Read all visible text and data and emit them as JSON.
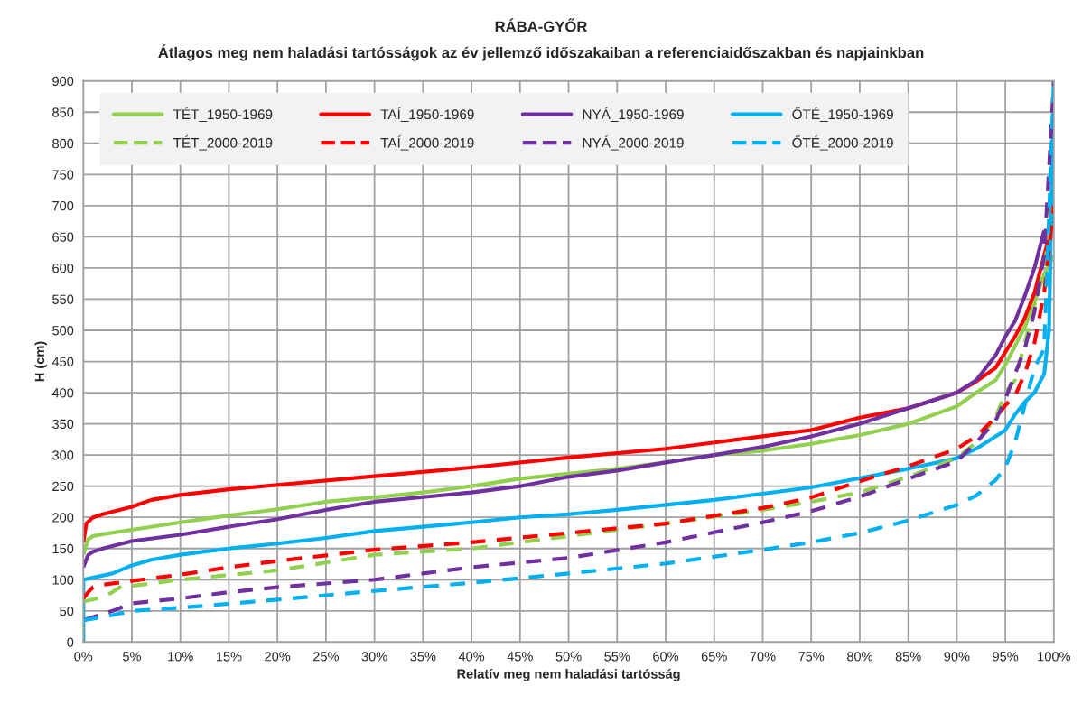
{
  "chart_data": {
    "type": "line",
    "title": "RÁBA-GYŐR",
    "subtitle": "Átlagos meg nem haladási tartósságok az év jellemző időszakaiban a referenciaidőszakban és napjainkban",
    "xlabel": "Relatív meg nem haladási tartósság",
    "ylabel": "H (cm)",
    "xlim": [
      0,
      100
    ],
    "ylim": [
      0,
      900
    ],
    "xticks": [
      {
        "value": 0,
        "label": "0%"
      },
      {
        "value": 5,
        "label": "5%"
      },
      {
        "value": 10,
        "label": "10%"
      },
      {
        "value": 15,
        "label": "15%"
      },
      {
        "value": 20,
        "label": "20%"
      },
      {
        "value": 25,
        "label": "25%"
      },
      {
        "value": 30,
        "label": "30%"
      },
      {
        "value": 35,
        "label": "35%"
      },
      {
        "value": 40,
        "label": "40%"
      },
      {
        "value": 45,
        "label": "45%"
      },
      {
        "value": 50,
        "label": "50%"
      },
      {
        "value": 55,
        "label": "55%"
      },
      {
        "value": 60,
        "label": "60%"
      },
      {
        "value": 65,
        "label": "65%"
      },
      {
        "value": 70,
        "label": "70%"
      },
      {
        "value": 75,
        "label": "75%"
      },
      {
        "value": 80,
        "label": "80%"
      },
      {
        "value": 85,
        "label": "85%"
      },
      {
        "value": 90,
        "label": "90%"
      },
      {
        "value": 95,
        "label": "95%"
      },
      {
        "value": 100,
        "label": "100%"
      }
    ],
    "yticks": [
      0,
      50,
      100,
      150,
      200,
      250,
      300,
      350,
      400,
      450,
      500,
      550,
      600,
      650,
      700,
      750,
      800,
      850,
      900
    ],
    "grid": true,
    "legend": "top left",
    "marker": "none",
    "series": [
      {
        "name": "TÉT_1950-1969",
        "color": "#92d050",
        "line_style": "solid",
        "x": [
          0,
          0.5,
          1,
          2,
          5,
          10,
          15,
          20,
          25,
          30,
          35,
          40,
          45,
          50,
          55,
          60,
          65,
          70,
          75,
          80,
          85,
          90,
          92,
          94,
          95,
          96,
          97,
          98,
          99,
          100
        ],
        "values": [
          140,
          165,
          170,
          173,
          180,
          192,
          203,
          213,
          225,
          232,
          240,
          250,
          262,
          270,
          278,
          288,
          300,
          307,
          318,
          332,
          350,
          378,
          400,
          420,
          445,
          475,
          505,
          545,
          590,
          620
        ]
      },
      {
        "name": "TAÍ_1950-1969",
        "color": "#ff0000",
        "line_style": "solid",
        "x": [
          0,
          0.3,
          1,
          2,
          5,
          7,
          10,
          15,
          20,
          30,
          40,
          50,
          60,
          70,
          75,
          80,
          85,
          90,
          92,
          94,
          95,
          96,
          97,
          98,
          99,
          100
        ],
        "values": [
          160,
          190,
          200,
          205,
          217,
          228,
          236,
          245,
          252,
          266,
          280,
          296,
          310,
          330,
          340,
          360,
          375,
          400,
          418,
          440,
          465,
          490,
          520,
          560,
          620,
          680
        ]
      },
      {
        "name": "NYÁ_1950-1969",
        "color": "#7030a0",
        "line_style": "solid",
        "x": [
          0,
          0.5,
          1,
          2,
          5,
          10,
          15,
          20,
          25,
          30,
          40,
          45,
          50,
          55,
          60,
          65,
          70,
          75,
          80,
          85,
          90,
          92,
          93,
          94,
          95,
          96,
          97,
          98,
          99
        ],
        "values": [
          120,
          140,
          145,
          150,
          162,
          172,
          185,
          197,
          212,
          225,
          240,
          250,
          265,
          275,
          288,
          300,
          313,
          330,
          350,
          375,
          400,
          420,
          440,
          460,
          490,
          515,
          555,
          600,
          660
        ]
      },
      {
        "name": "ŐTÉ_1950-1969",
        "color": "#00b0f0",
        "line_style": "solid",
        "x": [
          0,
          0,
          3,
          5,
          7,
          10,
          15,
          20,
          25,
          30,
          35,
          40,
          45,
          50,
          55,
          60,
          65,
          70,
          75,
          80,
          85,
          90,
          92,
          94,
          95,
          96,
          97,
          98,
          99,
          99.5,
          100
        ],
        "values": [
          0,
          100,
          110,
          123,
          132,
          140,
          150,
          158,
          167,
          178,
          185,
          192,
          200,
          205,
          212,
          220,
          228,
          238,
          248,
          263,
          278,
          295,
          310,
          330,
          340,
          365,
          385,
          400,
          430,
          500,
          900
        ]
      },
      {
        "name": "TÉT_2000-2019",
        "color": "#92d050",
        "line_style": "dashed",
        "x": [
          0,
          2,
          3,
          4,
          5,
          10,
          20,
          30,
          40,
          50,
          60,
          70,
          75,
          80,
          85,
          90,
          92,
          94,
          95,
          96,
          97,
          98,
          99,
          100
        ],
        "values": [
          65,
          72,
          80,
          90,
          90,
          100,
          115,
          140,
          150,
          170,
          190,
          212,
          225,
          240,
          265,
          295,
          320,
          360,
          400,
          420,
          480,
          540,
          600,
          700
        ]
      },
      {
        "name": "TAÍ_2000-2019",
        "color": "#ff0000",
        "line_style": "dashed",
        "x": [
          0,
          0.5,
          1,
          2,
          5,
          10,
          15,
          20,
          30,
          40,
          50,
          60,
          70,
          75,
          80,
          85,
          90,
          92,
          94,
          95,
          96,
          97,
          98,
          99,
          100
        ],
        "values": [
          70,
          80,
          88,
          92,
          98,
          108,
          120,
          130,
          148,
          160,
          175,
          190,
          215,
          232,
          258,
          282,
          310,
          330,
          360,
          380,
          395,
          430,
          480,
          560,
          700
        ]
      },
      {
        "name": "NYÁ_2000-2019",
        "color": "#7030a0",
        "line_style": "dashed",
        "x": [
          0,
          1,
          3,
          5,
          10,
          15,
          20,
          30,
          40,
          50,
          60,
          70,
          75,
          80,
          85,
          90,
          92,
          94,
          95,
          96,
          97,
          98,
          99,
          100
        ],
        "values": [
          35,
          40,
          50,
          62,
          70,
          80,
          88,
          100,
          120,
          135,
          160,
          192,
          210,
          233,
          262,
          290,
          320,
          355,
          390,
          430,
          470,
          530,
          620,
          900
        ]
      },
      {
        "name": "ŐTÉ_2000-2019",
        "color": "#00b0f0",
        "line_style": "dashed",
        "x": [
          0,
          2,
          5,
          10,
          20,
          30,
          40,
          50,
          60,
          70,
          75,
          80,
          85,
          90,
          92,
          94,
          95,
          96,
          97,
          98,
          99,
          100
        ],
        "values": [
          35,
          40,
          50,
          55,
          68,
          82,
          95,
          110,
          126,
          148,
          160,
          175,
          195,
          220,
          235,
          260,
          280,
          320,
          380,
          440,
          470,
          900
        ]
      }
    ]
  }
}
